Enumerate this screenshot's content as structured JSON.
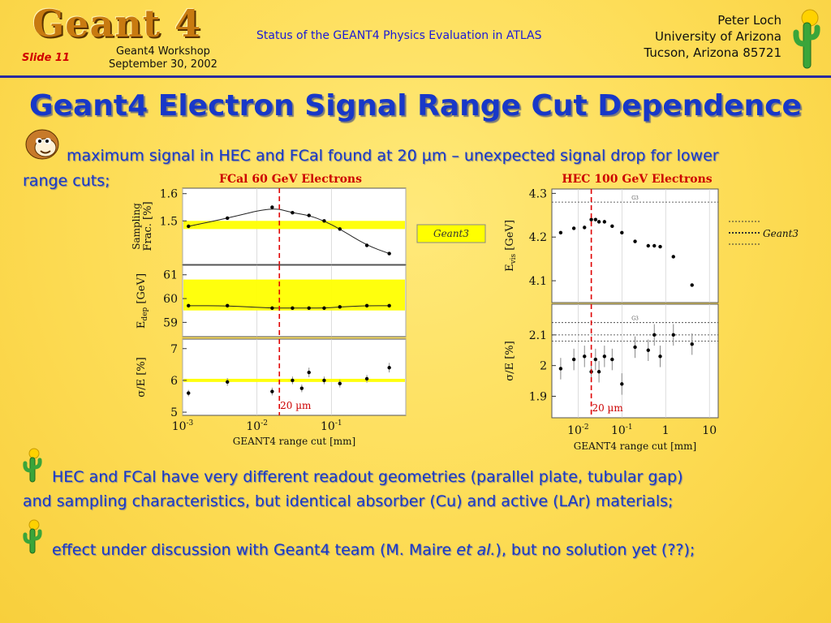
{
  "header": {
    "logo": "Geant 4",
    "slide": "Slide 11",
    "workshop_line1": "Geant4 Workshop",
    "workshop_line2": "September 30, 2002",
    "subtitle": "Status of the GEANT4 Physics Evaluation in ATLAS",
    "author_name": "Peter Loch",
    "author_inst": "University of Arizona",
    "author_addr": "Tucson, Arizona 85721"
  },
  "title": "Geant4 Electron Signal Range Cut Dependence",
  "bullets": [
    {
      "text_a": "maximum signal in HEC and FCal found at 20 µm – unexpected signal drop for lower",
      "text_b": "range cuts;"
    },
    {
      "text_a": "HEC and FCal have very different readout geometries (parallel plate, tubular gap)",
      "text_b": "and sampling characteristics, but identical absorber (Cu) and active (LAr) materials;"
    },
    {
      "text_a": "effect under discussion with Geant4 team (M. Maire ",
      "text_em": "et al.",
      "text_b": "), but no solution yet (??);"
    }
  ],
  "colors": {
    "band": "#ffff00",
    "cut_line": "#e00000",
    "caption": "#cc0000",
    "text_blue": "#1838c8"
  },
  "chart_data": [
    {
      "type": "scatter",
      "title": "FCal 60 GeV Electrons",
      "xlabel": "GEANT4 range cut [mm]",
      "x_scale": "log",
      "xlim_decades": [
        -3,
        0
      ],
      "xticks": [
        {
          "base": "10",
          "exp": "-3"
        },
        {
          "base": "10",
          "exp": "-2"
        },
        {
          "base": "10",
          "exp": "-1"
        }
      ],
      "vline_label": "20 µm",
      "vline_x": 0.02,
      "legend_label": "Geant3",
      "panels": [
        {
          "ylabel": "Sampling Frac. [%]",
          "yticks": [
            "1.6",
            "1.5"
          ],
          "ytick_values": [
            1.6,
            1.5
          ],
          "ylim": [
            1.34,
            1.62
          ],
          "band": [
            1.47,
            1.5
          ],
          "curve": true,
          "x": [
            0.0012,
            0.004,
            0.016,
            0.03,
            0.05,
            0.08,
            0.13,
            0.3,
            0.6
          ],
          "y": [
            1.48,
            1.51,
            1.55,
            1.53,
            1.52,
            1.5,
            1.47,
            1.41,
            1.38
          ]
        },
        {
          "ylabel": "E_dep [GeV]",
          "yticks": [
            "61",
            "60",
            "59"
          ],
          "ytick_values": [
            61,
            60,
            59
          ],
          "ylim": [
            58.4,
            61.4
          ],
          "band": [
            59.5,
            60.8
          ],
          "curve": true,
          "x": [
            0.0012,
            0.004,
            0.016,
            0.03,
            0.05,
            0.08,
            0.13,
            0.3,
            0.6
          ],
          "y": [
            59.7,
            59.7,
            59.6,
            59.6,
            59.6,
            59.6,
            59.65,
            59.7,
            59.7
          ]
        },
        {
          "ylabel": "σ/E [%]",
          "yticks": [
            "7",
            "6",
            "5"
          ],
          "ytick_values": [
            7,
            6,
            5
          ],
          "ylim": [
            4.9,
            7.3
          ],
          "band": [
            5.95,
            6.05
          ],
          "curve": false,
          "x": [
            0.0012,
            0.004,
            0.016,
            0.03,
            0.04,
            0.05,
            0.08,
            0.13,
            0.3,
            0.6
          ],
          "y": [
            5.6,
            5.95,
            5.65,
            6.0,
            5.75,
            6.25,
            6.0,
            5.9,
            6.05,
            6.4
          ],
          "yerr": [
            0.1,
            0.12,
            0.12,
            0.12,
            0.12,
            0.15,
            0.12,
            0.12,
            0.12,
            0.15
          ]
        }
      ]
    },
    {
      "type": "scatter",
      "title": "HEC 100 GeV Electrons",
      "xlabel": "GEANT4 range cut [mm]",
      "x_scale": "log",
      "xlim_decades": [
        -2.6,
        1.2
      ],
      "xticks": [
        {
          "base": "10",
          "exp": "-2"
        },
        {
          "base": "10",
          "exp": "-1"
        },
        {
          "base": "1",
          "exp": ""
        },
        {
          "base": "10",
          "exp": ""
        }
      ],
      "vline_label": "20 µm",
      "vline_x": 0.02,
      "legend_label": "Geant3",
      "panels": [
        {
          "ylabel": "E_vis [GeV]",
          "yticks": [
            "4.3",
            "4.2",
            "4.1"
          ],
          "ytick_values": [
            4.3,
            4.2,
            4.1
          ],
          "ylim": [
            4.05,
            4.31
          ],
          "ref_line": 4.28,
          "ref_label": "G3",
          "curve": false,
          "x": [
            0.004,
            0.008,
            0.014,
            0.02,
            0.025,
            0.03,
            0.04,
            0.06,
            0.1,
            0.2,
            0.4,
            0.55,
            0.75,
            1.5,
            4.0
          ],
          "y": [
            4.21,
            4.22,
            4.222,
            4.24,
            4.24,
            4.235,
            4.235,
            4.225,
            4.21,
            4.19,
            4.18,
            4.18,
            4.178,
            4.155,
            4.09
          ]
        },
        {
          "ylabel": "σ/E [%]",
          "yticks": [
            "2.1",
            "2",
            "1.9"
          ],
          "ytick_values": [
            2.1,
            2.0,
            1.9
          ],
          "ylim": [
            1.83,
            2.2
          ],
          "ref_line": 2.14,
          "ref_line2": 2.1,
          "ref_line3": 2.08,
          "ref_label": "G3",
          "curve": false,
          "x": [
            0.004,
            0.008,
            0.014,
            0.02,
            0.025,
            0.03,
            0.04,
            0.06,
            0.1,
            0.2,
            0.4,
            0.55,
            0.75,
            1.5,
            4.0
          ],
          "y": [
            1.99,
            2.02,
            2.03,
            1.98,
            2.02,
            1.98,
            2.03,
            2.02,
            1.94,
            2.06,
            2.05,
            2.1,
            2.03,
            2.1,
            2.07
          ],
          "yerr": [
            0.035,
            0.035,
            0.035,
            0.035,
            0.035,
            0.035,
            0.035,
            0.035,
            0.035,
            0.035,
            0.035,
            0.035,
            0.035,
            0.035,
            0.035
          ]
        }
      ]
    }
  ]
}
